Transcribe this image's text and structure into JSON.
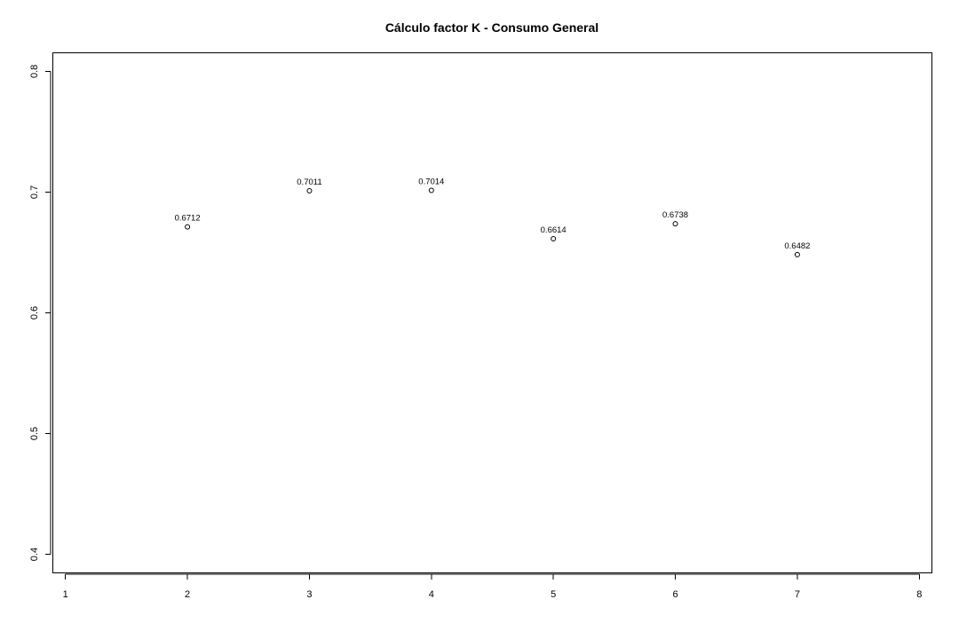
{
  "chart_data": {
    "type": "scatter",
    "title": "Cálculo factor K - Consumo General",
    "xlabel": "",
    "ylabel": "",
    "xlim": [
      0.9,
      8.1
    ],
    "ylim": [
      0.385,
      0.815
    ],
    "x_ticks": [
      1,
      2,
      3,
      4,
      5,
      6,
      7,
      8
    ],
    "x_tick_labels": [
      "1",
      "2",
      "3",
      "4",
      "5",
      "6",
      "7",
      "8"
    ],
    "y_ticks": [
      0.4,
      0.5,
      0.6,
      0.7,
      0.8
    ],
    "y_tick_labels": [
      "0.4",
      "0.5",
      "0.6",
      "0.7",
      "0.8"
    ],
    "grid": false,
    "marker": "open-circle",
    "series": [
      {
        "x": [
          2,
          3,
          4,
          5,
          6,
          7
        ],
        "y": [
          0.6712,
          0.7011,
          0.7014,
          0.6614,
          0.6738,
          0.6482
        ],
        "labels": [
          "0.6712",
          "0.7011",
          "0.7014",
          "0.6614",
          "0.6738",
          "0.6482"
        ]
      }
    ]
  }
}
